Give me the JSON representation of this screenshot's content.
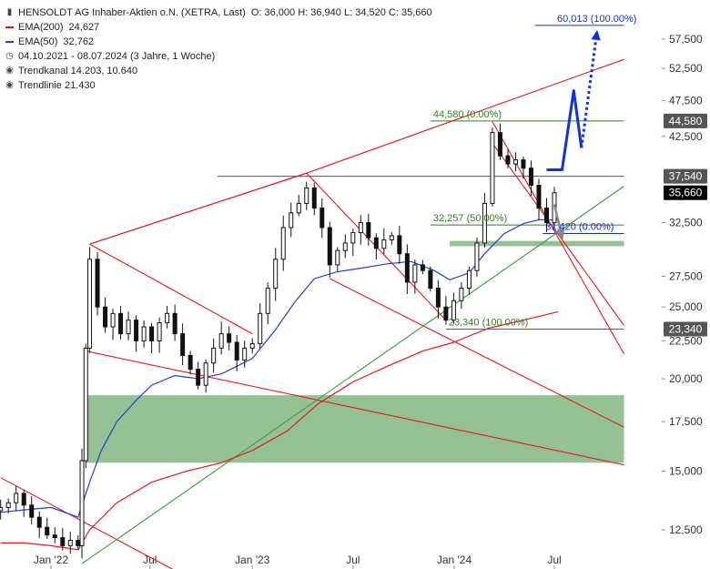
{
  "legend": {
    "title": "HENSOLDT AG Inhaber-Aktien o.N. (XETRA, Last)",
    "ohlc": "O: 36,000   H: 36,940   L: 34,520   C: 35,660",
    "ema200_label": "EMA(200)",
    "ema200_value": "24,627",
    "ema50_label": "EMA(50)",
    "ema50_value": "32,762",
    "range": "04.10.2021 - 08.07.2024   (3 Jahre, 1 Woche)",
    "trendkanal": "Trendkanal  14.203, 10.640",
    "trendlinie": "Trendlinie  21.430"
  },
  "colors": {
    "candle": "#111111",
    "ema200": "#e31a1c",
    "ema50": "#1f3fd6",
    "trend_red": "#e31a1c",
    "trend_green": "#3a9a3a",
    "zone": "#8fbf8f",
    "target_blue": "#1030e0",
    "projection_gray": "#888888",
    "hline_gray": "#555555",
    "price_label_bg": "#555555",
    "last_label_bg": "#000000"
  },
  "chart_data": {
    "type": "candlestick",
    "scale": "log",
    "ylim": [
      11.2,
      62
    ],
    "x_ticks": [
      {
        "label": "Jan '22",
        "date": "2022-01-03"
      },
      {
        "label": "Jul",
        "date": "2022-07-01"
      },
      {
        "label": "Jan '23",
        "date": "2023-01-02"
      },
      {
        "label": "Jul",
        "date": "2023-07-03"
      },
      {
        "label": "Jan '24",
        "date": "2024-01-02"
      },
      {
        "label": "Jul",
        "date": "2024-07-01"
      }
    ],
    "y_ticks": [
      {
        "value": 57.5,
        "label": "57,500"
      },
      {
        "value": 52.5,
        "label": "52,500"
      },
      {
        "value": 47.5,
        "label": "47,500"
      },
      {
        "value": 42.5,
        "label": "42,500"
      },
      {
        "value": 32.5,
        "label": "32,500"
      },
      {
        "value": 27.5,
        "label": "27,500"
      },
      {
        "value": 25.0,
        "label": "25,000"
      },
      {
        "value": 22.5,
        "label": "22,500"
      },
      {
        "value": 20.0,
        "label": "20,000"
      },
      {
        "value": 17.5,
        "label": "17,500"
      },
      {
        "value": 15.0,
        "label": "15,000"
      },
      {
        "value": 12.5,
        "label": "12,500"
      }
    ],
    "price_labels": [
      {
        "value": 44.58,
        "label": "44,580",
        "style": "level"
      },
      {
        "value": 37.54,
        "label": "37,540",
        "style": "level"
      },
      {
        "value": 35.66,
        "label": "35,660",
        "style": "last"
      },
      {
        "value": 23.34,
        "label": "23,340",
        "style": "level"
      }
    ],
    "fib_labels": [
      {
        "text": "60,013 (100.00%)",
        "value": 60.013,
        "date": "2024-07-01",
        "color": "#1030e0"
      },
      {
        "text": "44,580 (0.00%)",
        "value": 44.58,
        "date": "2023-11-20",
        "color": "#3a7a2a"
      },
      {
        "text": "32,257 (50.00%)",
        "value": 32.257,
        "date": "2023-11-20",
        "color": "#3a7a2a"
      },
      {
        "text": "31,420 (0.00%)",
        "value": 31.42,
        "date": "2024-06-10",
        "color": "#1030e0"
      },
      {
        "text": "23,340 (100.00%)",
        "value": 23.34,
        "date": "2023-12-18",
        "color": "#3a7a2a"
      }
    ],
    "hlines": [
      {
        "value": 60.013,
        "from": "2024-05-27",
        "to": "2024-11-04",
        "color": "#1030e0"
      },
      {
        "value": 44.58,
        "from": "2023-11-20",
        "to": "2024-11-04",
        "color": "#3a7a2a"
      },
      {
        "value": 37.54,
        "from": "2022-10-31",
        "to": "2024-11-04",
        "color": "#555555"
      },
      {
        "value": 32.257,
        "from": "2023-11-20",
        "to": "2024-11-04",
        "color": "#3a7a2a"
      },
      {
        "value": 31.42,
        "from": "2024-06-10",
        "to": "2024-11-04",
        "color": "#1030e0"
      },
      {
        "value": 23.34,
        "from": "2023-12-18",
        "to": "2024-11-04",
        "color": "#3a7a2a"
      }
    ],
    "zones": [
      {
        "from": "2022-03-07",
        "to": "2024-11-04",
        "y1": 15.4,
        "y2": 19.0
      },
      {
        "from": "2023-12-25",
        "to": "2024-11-04",
        "y1": 30.2,
        "y2": 30.7
      }
    ],
    "trendlines": [
      {
        "color": "#e31a1c",
        "points": [
          [
            "2022-03-14",
            30.4
          ],
          [
            "2023-04-10",
            37.9
          ],
          [
            "2024-11-04",
            54.0
          ]
        ]
      },
      {
        "color": "#e31a1c",
        "points": [
          [
            "2022-03-14",
            30.4
          ],
          [
            "2023-04-10",
            37.9
          ]
        ]
      },
      {
        "color": "#e31a1c",
        "points": [
          [
            "2022-03-07",
            21.8
          ],
          [
            "2024-11-04",
            15.3
          ]
        ]
      },
      {
        "color": "#e31a1c",
        "points": [
          [
            "2021-10-04",
            14.7
          ],
          [
            "2022-09-26",
            10.6
          ]
        ]
      },
      {
        "color": "#e31a1c",
        "points": [
          [
            "2022-03-14",
            30.4
          ],
          [
            "2023-01-02",
            23.0
          ]
        ]
      },
      {
        "color": "#e31a1c",
        "points": [
          [
            "2023-04-10",
            37.9
          ],
          [
            "2023-12-18",
            24.0
          ]
        ]
      },
      {
        "color": "#e31a1c",
        "points": [
          [
            "2023-05-22",
            27.3
          ],
          [
            "2024-11-04",
            17.2
          ]
        ]
      },
      {
        "color": "#e31a1c",
        "points": [
          [
            "2024-03-11",
            44.5
          ],
          [
            "2024-11-04",
            21.6
          ]
        ]
      },
      {
        "color": "#e31a1c",
        "points": [
          [
            "2024-03-11",
            41.6
          ],
          [
            "2024-11-04",
            23.6
          ]
        ]
      },
      {
        "color": "#3a9a3a",
        "points": [
          [
            "2022-02-28",
            11.25
          ],
          [
            "2024-11-04",
            36.4
          ]
        ]
      }
    ],
    "target_path": [
      [
        "2024-06-17",
        38.3
      ],
      [
        "2024-07-15",
        38.3
      ],
      [
        "2024-08-05",
        49.0
      ],
      [
        "2024-08-19",
        41.0
      ]
    ],
    "target_dotted": [
      [
        "2024-08-19",
        41.0
      ],
      [
        "2024-09-16",
        58.8
      ]
    ],
    "projection_path": [
      [
        "2024-07-01",
        34.4
      ],
      [
        "2024-07-15",
        31.0
      ]
    ],
    "ema200": [
      [
        "2021-10-04",
        12.0
      ],
      [
        "2021-11-15",
        12.0
      ],
      [
        "2022-01-03",
        11.9
      ],
      [
        "2022-02-21",
        11.75
      ],
      [
        "2022-03-14",
        12.5
      ],
      [
        "2022-05-02",
        13.6
      ],
      [
        "2022-07-04",
        14.5
      ],
      [
        "2022-09-05",
        15.0
      ],
      [
        "2022-11-07",
        15.4
      ],
      [
        "2023-01-02",
        16.0
      ],
      [
        "2023-03-06",
        17.0
      ],
      [
        "2023-05-01",
        18.5
      ],
      [
        "2023-07-03",
        19.8
      ],
      [
        "2023-09-04",
        20.8
      ],
      [
        "2023-11-06",
        21.8
      ],
      [
        "2024-01-01",
        22.4
      ],
      [
        "2024-03-04",
        23.4
      ],
      [
        "2024-05-06",
        24.0
      ],
      [
        "2024-07-08",
        24.63
      ]
    ],
    "ema50": [
      [
        "2021-10-04",
        13.2
      ],
      [
        "2021-11-15",
        13.3
      ],
      [
        "2022-01-03",
        13.4
      ],
      [
        "2022-02-21",
        13.0
      ],
      [
        "2022-03-14",
        14.5
      ],
      [
        "2022-04-04",
        16.0
      ],
      [
        "2022-05-02",
        17.5
      ],
      [
        "2022-06-06",
        18.7
      ],
      [
        "2022-07-04",
        19.6
      ],
      [
        "2022-08-15",
        20.2
      ],
      [
        "2022-09-26",
        20.0
      ],
      [
        "2022-11-07",
        20.3
      ],
      [
        "2023-01-02",
        21.3
      ],
      [
        "2023-02-13",
        23.3
      ],
      [
        "2023-03-20",
        25.4
      ],
      [
        "2023-04-24",
        27.3
      ],
      [
        "2023-06-05",
        27.9
      ],
      [
        "2023-07-17",
        28.2
      ],
      [
        "2023-09-04",
        28.6
      ],
      [
        "2023-10-16",
        28.8
      ],
      [
        "2023-11-27",
        28.0
      ],
      [
        "2023-12-25",
        27.2
      ],
      [
        "2024-01-29",
        27.8
      ],
      [
        "2024-02-26",
        29.5
      ],
      [
        "2024-04-01",
        31.4
      ],
      [
        "2024-05-06",
        32.4
      ],
      [
        "2024-06-03",
        32.8
      ],
      [
        "2024-07-08",
        32.76
      ]
    ],
    "closes": [
      [
        "2021-10-04",
        13.4
      ],
      [
        "2021-10-18",
        13.6
      ],
      [
        "2021-11-01",
        14.0
      ],
      [
        "2021-11-15",
        13.5
      ],
      [
        "2021-11-29",
        13.0
      ],
      [
        "2021-12-13",
        12.6
      ],
      [
        "2021-12-27",
        12.3
      ],
      [
        "2022-01-10",
        12.2
      ],
      [
        "2022-01-24",
        11.9
      ],
      [
        "2022-02-07",
        12.1
      ],
      [
        "2022-02-21",
        11.9
      ],
      [
        "2022-02-28",
        15.5
      ],
      [
        "2022-03-07",
        22.0
      ],
      [
        "2022-03-14",
        29.0
      ],
      [
        "2022-03-28",
        25.0
      ],
      [
        "2022-04-11",
        23.5
      ],
      [
        "2022-04-25",
        24.5
      ],
      [
        "2022-05-09",
        23.0
      ],
      [
        "2022-05-23",
        24.0
      ],
      [
        "2022-06-06",
        22.5
      ],
      [
        "2022-06-20",
        23.5
      ],
      [
        "2022-07-04",
        22.5
      ],
      [
        "2022-07-18",
        23.8
      ],
      [
        "2022-08-01",
        24.5
      ],
      [
        "2022-08-15",
        23.0
      ],
      [
        "2022-08-29",
        21.5
      ],
      [
        "2022-09-12",
        20.6
      ],
      [
        "2022-09-26",
        19.6
      ],
      [
        "2022-10-10",
        21.0
      ],
      [
        "2022-10-24",
        22.0
      ],
      [
        "2022-11-07",
        23.0
      ],
      [
        "2022-11-21",
        22.4
      ],
      [
        "2022-12-05",
        21.2
      ],
      [
        "2022-12-19",
        22.0
      ],
      [
        "2023-01-02",
        22.3
      ],
      [
        "2023-01-16",
        24.5
      ],
      [
        "2023-01-30",
        26.5
      ],
      [
        "2023-02-13",
        29.0
      ],
      [
        "2023-02-27",
        32.0
      ],
      [
        "2023-03-13",
        33.5
      ],
      [
        "2023-03-27",
        34.5
      ],
      [
        "2023-04-10",
        36.2
      ],
      [
        "2023-04-24",
        34.0
      ],
      [
        "2023-05-08",
        32.0
      ],
      [
        "2023-05-22",
        28.5
      ],
      [
        "2023-06-05",
        29.8
      ],
      [
        "2023-06-19",
        30.5
      ],
      [
        "2023-07-03",
        31.5
      ],
      [
        "2023-07-17",
        32.5
      ],
      [
        "2023-07-31",
        31.0
      ],
      [
        "2023-08-14",
        30.0
      ],
      [
        "2023-08-28",
        30.8
      ],
      [
        "2023-09-11",
        31.2
      ],
      [
        "2023-09-25",
        29.5
      ],
      [
        "2023-10-09",
        27.0
      ],
      [
        "2023-10-23",
        28.5
      ],
      [
        "2023-11-06",
        28.0
      ],
      [
        "2023-11-20",
        26.5
      ],
      [
        "2023-12-04",
        25.0
      ],
      [
        "2023-12-18",
        24.0
      ],
      [
        "2024-01-01",
        25.5
      ],
      [
        "2024-01-15",
        26.5
      ],
      [
        "2024-01-29",
        28.0
      ],
      [
        "2024-02-12",
        30.5
      ],
      [
        "2024-02-26",
        34.5
      ],
      [
        "2024-03-11",
        43.0
      ],
      [
        "2024-03-25",
        40.0
      ],
      [
        "2024-04-08",
        39.0
      ],
      [
        "2024-04-22",
        39.5
      ],
      [
        "2024-05-06",
        38.5
      ],
      [
        "2024-05-20",
        36.5
      ],
      [
        "2024-06-03",
        34.0
      ],
      [
        "2024-06-17",
        32.5
      ],
      [
        "2024-07-01",
        35.66
      ]
    ]
  }
}
